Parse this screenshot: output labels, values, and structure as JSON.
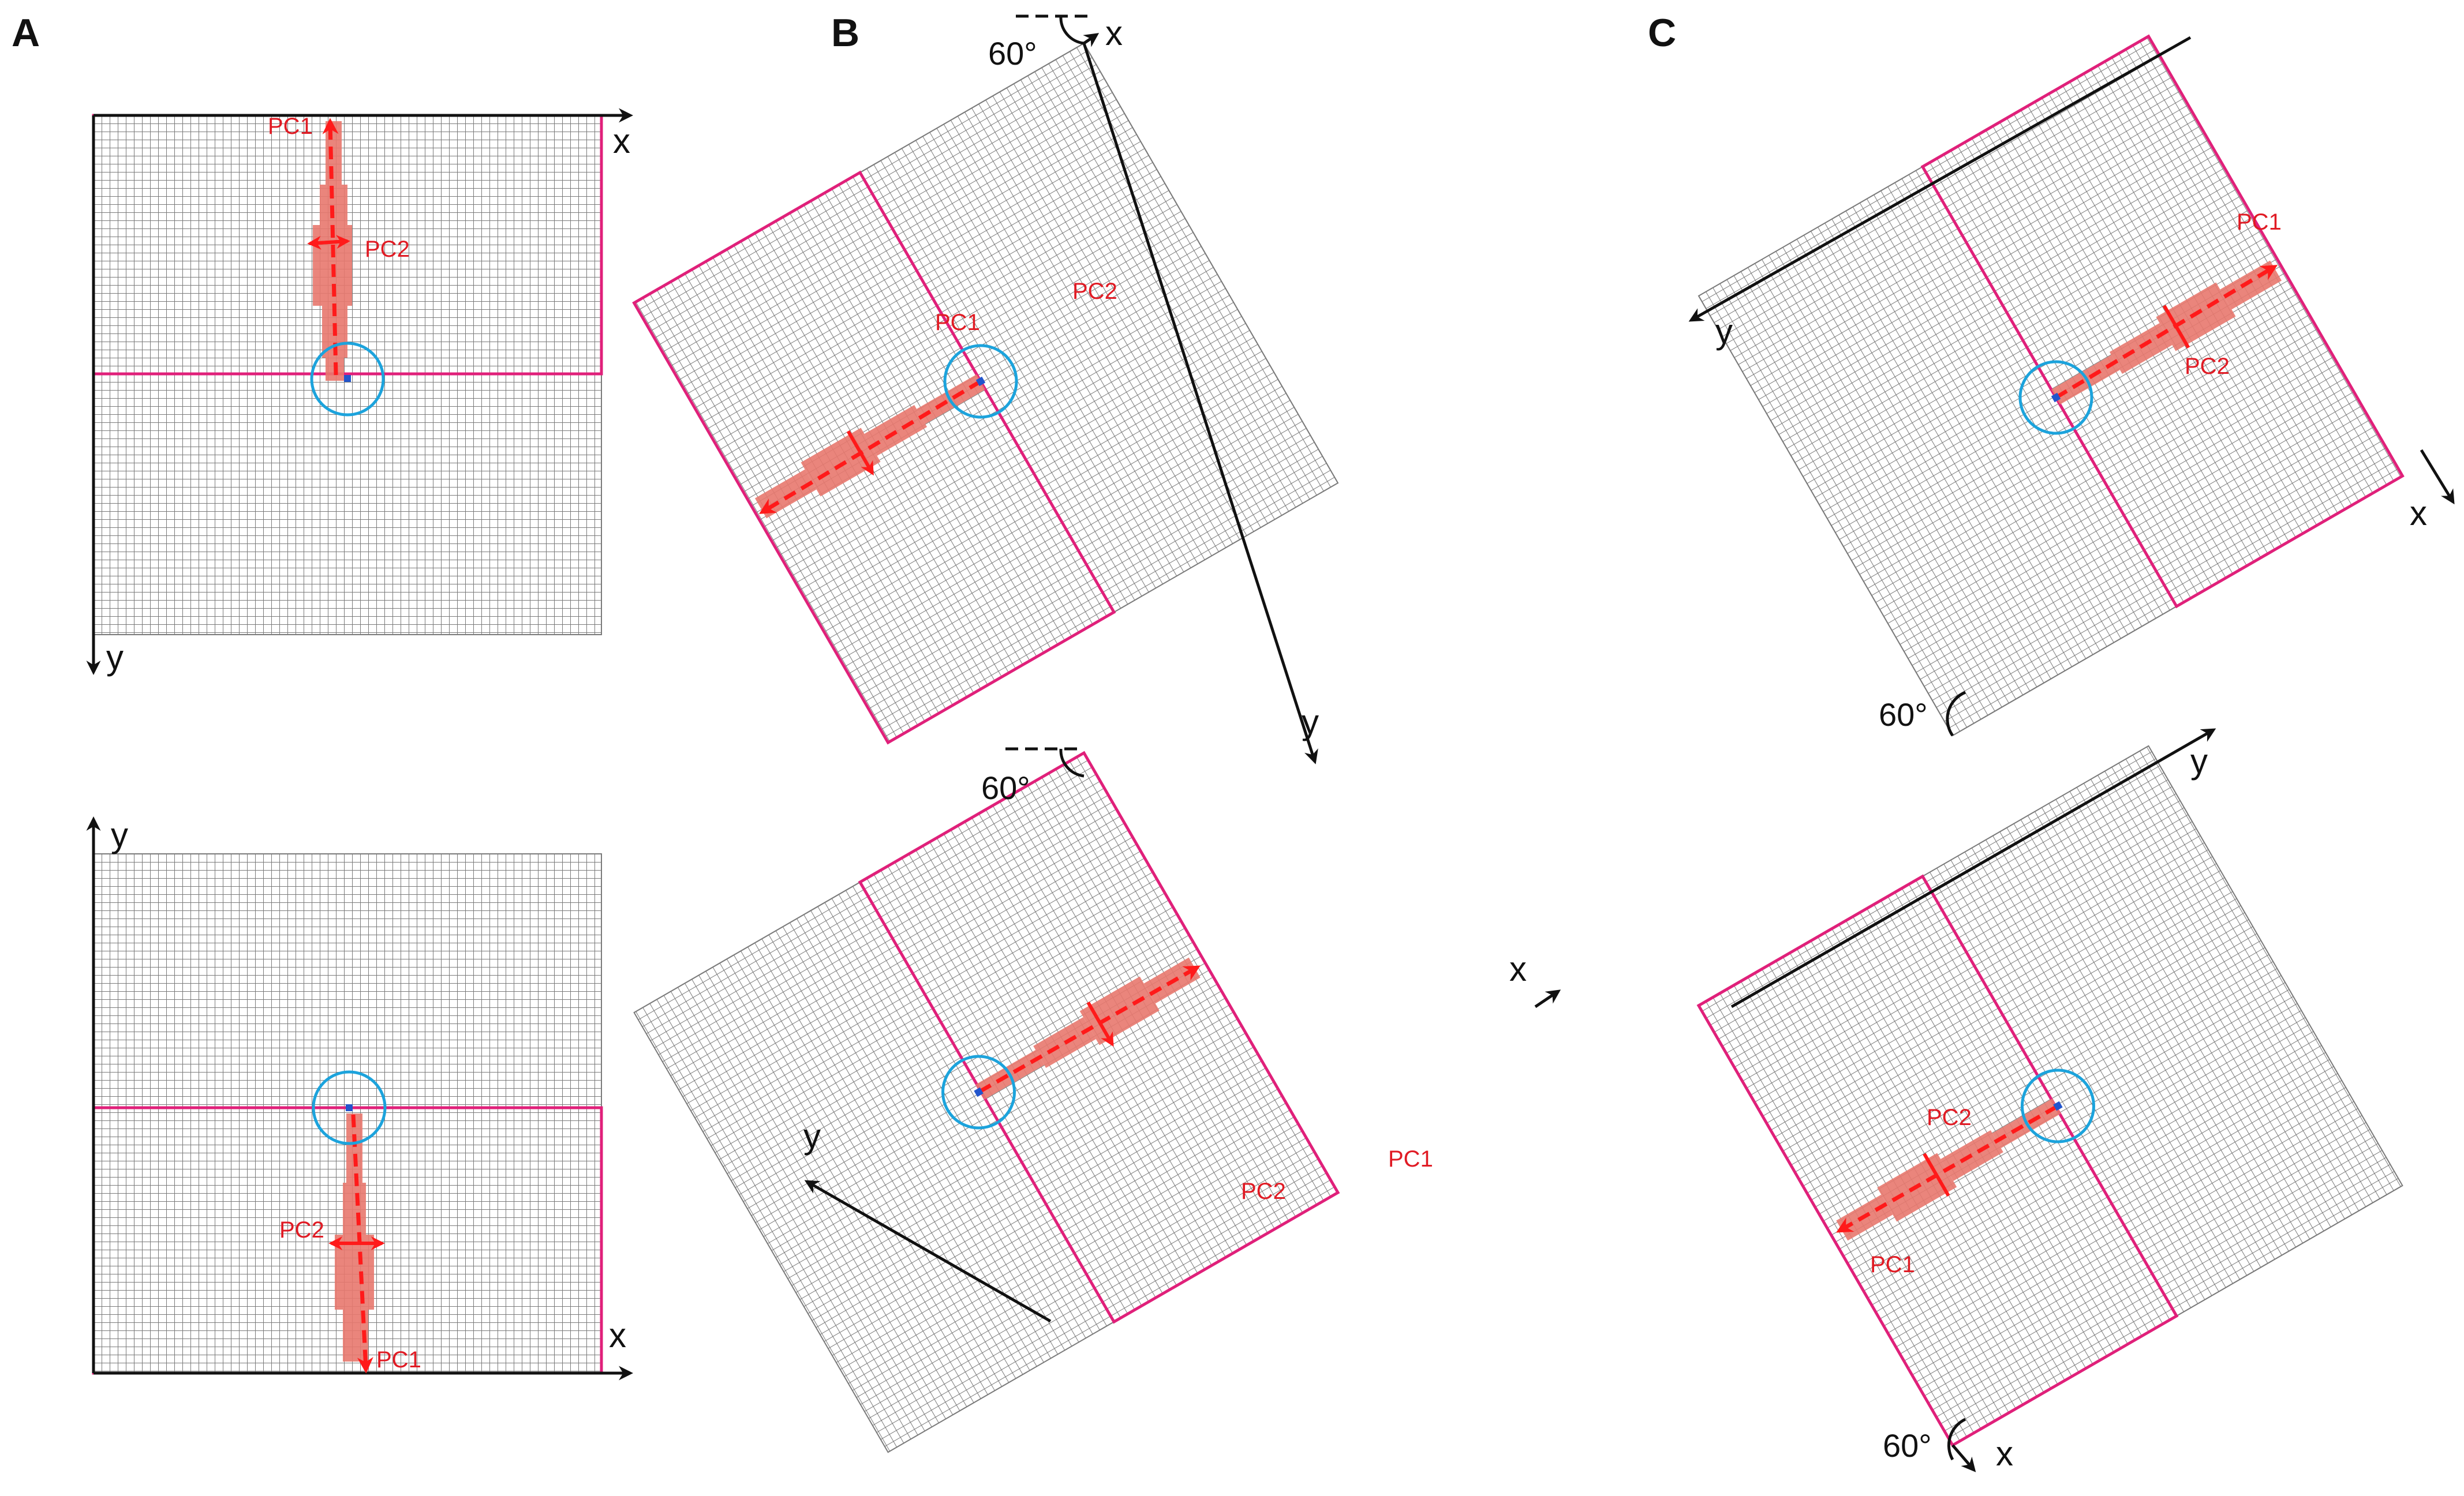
{
  "figure": {
    "panels": [
      {
        "id": "A",
        "label": "A",
        "rotation_deg": 0,
        "views": [
          {
            "name": "top",
            "x_axis_label": "x",
            "y_axis_label": "y",
            "pc1_label": "PC1",
            "pc2_label": "PC2"
          },
          {
            "name": "bottom",
            "x_axis_label": "x",
            "y_axis_label": "y",
            "pc1_label": "PC1",
            "pc2_label": "PC2"
          }
        ]
      },
      {
        "id": "B",
        "label": "B",
        "rotation_deg": 60,
        "views": [
          {
            "name": "top",
            "x_axis_label": "x",
            "y_axis_label": "y",
            "pc1_label": "PC1",
            "pc2_label": "PC2",
            "angle_label": "60°"
          },
          {
            "name": "bottom",
            "x_axis_label": "x",
            "y_axis_label": "y",
            "pc1_label": "PC1",
            "pc2_label": "PC2",
            "angle_label": "60°"
          }
        ]
      },
      {
        "id": "C",
        "label": "C",
        "rotation_deg": -60,
        "views": [
          {
            "name": "top",
            "x_axis_label": "x",
            "y_axis_label": "y",
            "pc1_label": "PC1",
            "pc2_label": "PC2",
            "angle_label": "60°"
          },
          {
            "name": "bottom",
            "x_axis_label": "x",
            "y_axis_label": "y",
            "pc1_label": "PC1",
            "pc2_label": "PC2",
            "angle_label": "60°"
          }
        ]
      }
    ],
    "colors": {
      "grid": "#7a7a7a",
      "border": "#e0207a",
      "cell": "#e8786e",
      "pc_arrow": "#ff1a1a",
      "circle": "#1ca3dc",
      "origin": "#2255cc",
      "axis": "#111111"
    }
  }
}
